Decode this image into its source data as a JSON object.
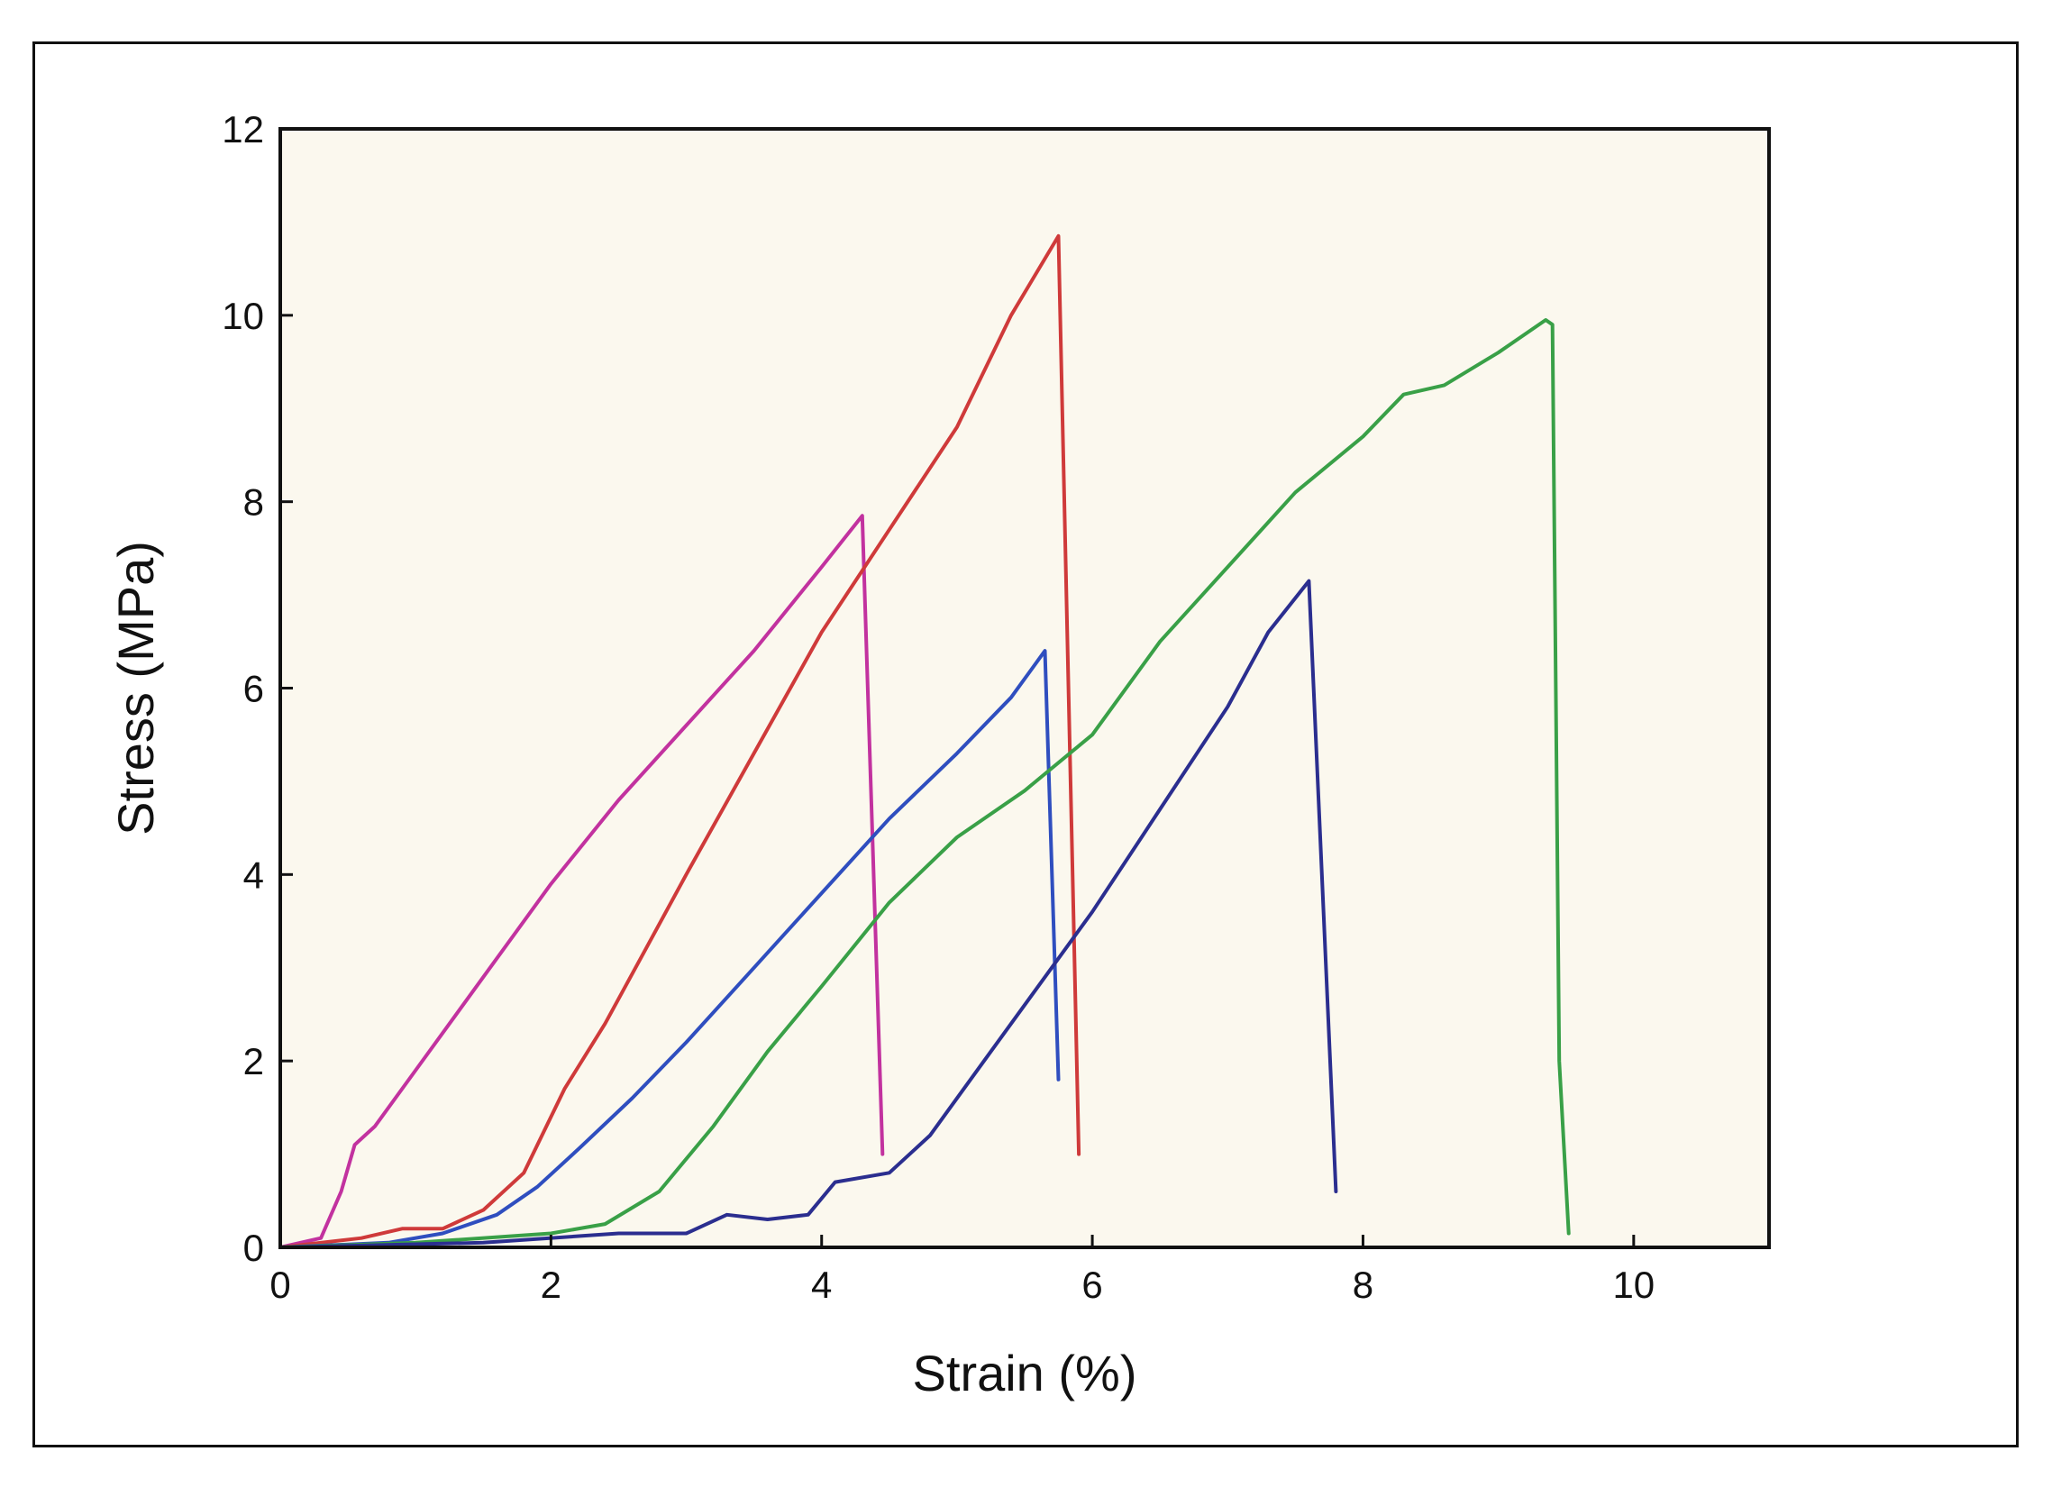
{
  "chart_data": {
    "type": "line",
    "title": "",
    "xlabel": "Strain (%)",
    "ylabel": "Stress (MPa)",
    "xlim": [
      0,
      11
    ],
    "ylim": [
      0,
      12
    ],
    "xticks": [
      0,
      2,
      4,
      6,
      8,
      10
    ],
    "yticks": [
      0,
      2,
      4,
      6,
      8,
      10,
      12
    ],
    "grid": false,
    "legend": "none",
    "plot_background": "#fbf8ee",
    "series": [
      {
        "color": "#c2329f",
        "points": [
          [
            0,
            0
          ],
          [
            0.3,
            0.1
          ],
          [
            0.45,
            0.6
          ],
          [
            0.55,
            1.1
          ],
          [
            0.7,
            1.3
          ],
          [
            1.0,
            1.9
          ],
          [
            1.5,
            2.9
          ],
          [
            2.0,
            3.9
          ],
          [
            2.5,
            4.8
          ],
          [
            3.0,
            5.6
          ],
          [
            3.5,
            6.4
          ],
          [
            4.0,
            7.3
          ],
          [
            4.3,
            7.85
          ],
          [
            4.45,
            1.0
          ]
        ]
      },
      {
        "color": "#cf3a3a",
        "points": [
          [
            0,
            0
          ],
          [
            0.6,
            0.1
          ],
          [
            0.9,
            0.2
          ],
          [
            1.2,
            0.2
          ],
          [
            1.5,
            0.4
          ],
          [
            1.8,
            0.8
          ],
          [
            2.1,
            1.7
          ],
          [
            2.4,
            2.4
          ],
          [
            2.7,
            3.2
          ],
          [
            3.0,
            4.0
          ],
          [
            3.5,
            5.3
          ],
          [
            4.0,
            6.6
          ],
          [
            4.5,
            7.7
          ],
          [
            5.0,
            8.8
          ],
          [
            5.4,
            10.0
          ],
          [
            5.75,
            10.85
          ],
          [
            5.9,
            1.0
          ]
        ]
      },
      {
        "color": "#2f4ebf",
        "points": [
          [
            0,
            0
          ],
          [
            0.8,
            0.05
          ],
          [
            1.2,
            0.15
          ],
          [
            1.6,
            0.35
          ],
          [
            1.9,
            0.65
          ],
          [
            2.2,
            1.05
          ],
          [
            2.6,
            1.6
          ],
          [
            3.0,
            2.2
          ],
          [
            3.5,
            3.0
          ],
          [
            4.0,
            3.8
          ],
          [
            4.5,
            4.6
          ],
          [
            5.0,
            5.3
          ],
          [
            5.4,
            5.9
          ],
          [
            5.65,
            6.4
          ],
          [
            5.75,
            1.8
          ]
        ]
      },
      {
        "color": "#39a047",
        "points": [
          [
            0,
            0
          ],
          [
            1.0,
            0.05
          ],
          [
            2.0,
            0.15
          ],
          [
            2.4,
            0.25
          ],
          [
            2.8,
            0.6
          ],
          [
            3.2,
            1.3
          ],
          [
            3.6,
            2.1
          ],
          [
            4.0,
            2.8
          ],
          [
            4.5,
            3.7
          ],
          [
            5.0,
            4.4
          ],
          [
            5.5,
            4.9
          ],
          [
            6.0,
            5.5
          ],
          [
            6.5,
            6.5
          ],
          [
            7.0,
            7.3
          ],
          [
            7.5,
            8.1
          ],
          [
            8.0,
            8.7
          ],
          [
            8.3,
            9.15
          ],
          [
            8.6,
            9.25
          ],
          [
            9.0,
            9.6
          ],
          [
            9.35,
            9.95
          ],
          [
            9.4,
            9.9
          ],
          [
            9.45,
            2.0
          ],
          [
            9.52,
            0.15
          ]
        ]
      },
      {
        "color": "#2b2e8f",
        "points": [
          [
            0,
            0
          ],
          [
            1.5,
            0.05
          ],
          [
            2.5,
            0.15
          ],
          [
            3.0,
            0.15
          ],
          [
            3.3,
            0.35
          ],
          [
            3.6,
            0.3
          ],
          [
            3.9,
            0.35
          ],
          [
            4.1,
            0.7
          ],
          [
            4.5,
            0.8
          ],
          [
            4.8,
            1.2
          ],
          [
            5.2,
            2.0
          ],
          [
            5.6,
            2.8
          ],
          [
            6.0,
            3.6
          ],
          [
            6.5,
            4.7
          ],
          [
            7.0,
            5.8
          ],
          [
            7.3,
            6.6
          ],
          [
            7.6,
            7.15
          ],
          [
            7.8,
            0.6
          ]
        ]
      }
    ]
  }
}
